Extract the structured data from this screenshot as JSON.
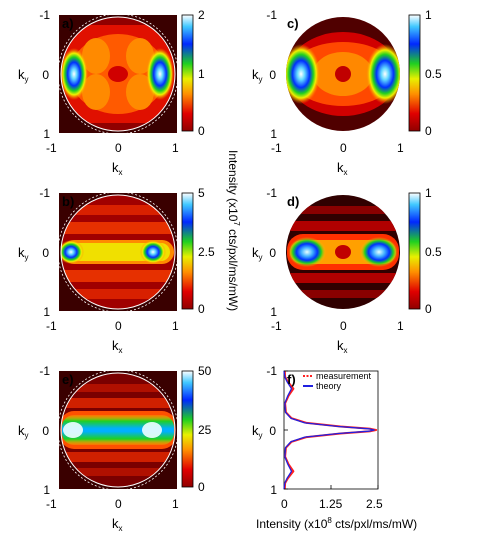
{
  "panels": [
    {
      "id": "a",
      "label": "a)",
      "xlabel": "k",
      "xlabel_sub": "x",
      "ylabel": "k",
      "ylabel_sub": "y",
      "xticks": [
        "-1",
        "0",
        "1"
      ],
      "yticks": [
        "-1",
        "0",
        "1"
      ],
      "colorbar_ticks": [
        "2",
        "1",
        "0"
      ],
      "colorbar_range": [
        0,
        2
      ]
    },
    {
      "id": "b",
      "label": "b)",
      "xlabel": "k",
      "xlabel_sub": "x",
      "ylabel": "k",
      "ylabel_sub": "y",
      "xticks": [
        "-1",
        "0",
        "1"
      ],
      "yticks": [
        "-1",
        "0",
        "1"
      ],
      "colorbar_ticks": [
        "5",
        "2.5",
        "0"
      ],
      "colorbar_range": [
        0,
        5
      ]
    },
    {
      "id": "c",
      "label": "c)",
      "xlabel": "k",
      "xlabel_sub": "x",
      "ylabel": "k",
      "ylabel_sub": "y",
      "xticks": [
        "-1",
        "0",
        "1"
      ],
      "yticks": [
        "-1",
        "0",
        "1"
      ],
      "colorbar_ticks": [
        "1",
        "0.5",
        "0"
      ],
      "colorbar_range": [
        0,
        1
      ]
    },
    {
      "id": "d",
      "label": "d)",
      "xlabel": "k",
      "xlabel_sub": "x",
      "ylabel": "k",
      "ylabel_sub": "y",
      "xticks": [
        "-1",
        "0",
        "1"
      ],
      "yticks": [
        "-1",
        "0",
        "1"
      ],
      "colorbar_ticks": [
        "1",
        "0.5",
        "0"
      ],
      "colorbar_range": [
        0,
        1
      ]
    },
    {
      "id": "e",
      "label": "e)",
      "xlabel": "k",
      "xlabel_sub": "x",
      "ylabel": "k",
      "ylabel_sub": "y",
      "xticks": [
        "-1",
        "0",
        "1"
      ],
      "yticks": [
        "-1",
        "0",
        "1"
      ],
      "colorbar_ticks": [
        "50",
        "25",
        "0"
      ],
      "colorbar_range": [
        0,
        50
      ]
    }
  ],
  "center_label": {
    "text": "Intensity (x10",
    "exp": "7",
    "tail": " cts/pxl/ms/mW)"
  },
  "chart_data": {
    "type": "line",
    "label": "f)",
    "legend": [
      "measurement",
      "theory"
    ],
    "legend_position": "top-right",
    "xlabel": {
      "text": "Intensity (x10",
      "exp": "8",
      "tail": " cts/pxl/ms/mW)"
    },
    "ylabel": "k",
    "ylabel_sub": "y",
    "xticks": [
      "0",
      "1.25",
      "2.5"
    ],
    "yticks": [
      "-1",
      "0",
      "1"
    ],
    "xlim": [
      0,
      2.5
    ],
    "ylim": [
      -1,
      1
    ],
    "y_inverted": true,
    "series": [
      {
        "name": "measurement",
        "color": "#ff2020",
        "x": [
          0.02,
          0.03,
          0.1,
          0.25,
          0.12,
          0.03,
          0.05,
          0.2,
          0.6,
          1.5,
          2.3,
          2.45,
          2.3,
          1.5,
          0.6,
          0.2,
          0.05,
          0.03,
          0.12,
          0.25,
          0.1,
          0.03,
          0.02
        ],
        "y": [
          -1.0,
          -0.9,
          -0.82,
          -0.7,
          -0.58,
          -0.45,
          -0.3,
          -0.2,
          -0.12,
          -0.06,
          -0.02,
          0.0,
          0.02,
          0.06,
          0.12,
          0.2,
          0.3,
          0.45,
          0.58,
          0.7,
          0.82,
          0.9,
          1.0
        ]
      },
      {
        "name": "theory",
        "color": "#2020e0",
        "x": [
          0.0,
          0.02,
          0.08,
          0.2,
          0.1,
          0.02,
          0.04,
          0.18,
          0.55,
          1.45,
          2.25,
          2.4,
          2.25,
          1.45,
          0.55,
          0.18,
          0.04,
          0.02,
          0.1,
          0.2,
          0.08,
          0.02,
          0.0
        ],
        "y": [
          -1.0,
          -0.9,
          -0.82,
          -0.7,
          -0.58,
          -0.45,
          -0.3,
          -0.2,
          -0.12,
          -0.06,
          -0.02,
          0.0,
          0.02,
          0.06,
          0.12,
          0.2,
          0.3,
          0.45,
          0.58,
          0.7,
          0.82,
          0.9,
          1.0
        ]
      }
    ]
  }
}
